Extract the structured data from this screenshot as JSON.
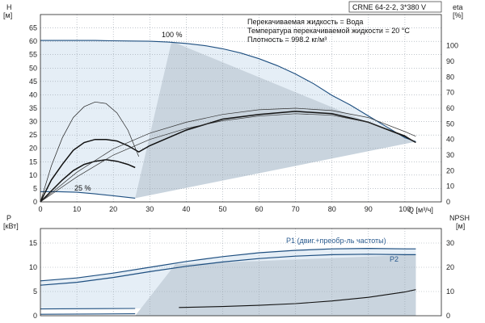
{
  "chart_data": [
    {
      "type": "line",
      "title": "CRNE 64-2-2, 3*380 V",
      "info_lines": [
        "Перекачиваемая жидкость = Вода",
        "Температура перекачиваемой жидкости = 20 °C",
        "Плотность = 998.2 кг/м³"
      ],
      "left_axis_label": "H",
      "left_axis_unit": "[м]",
      "right_axis_label": "eta",
      "right_axis_unit": "[%]",
      "x_axis_label": "Q [м³/ч]",
      "xlim": [
        0,
        110
      ],
      "ylim": [
        0,
        70
      ],
      "y2lim": [
        0,
        120
      ],
      "x_ticks": [
        0,
        10,
        20,
        30,
        40,
        50,
        60,
        70,
        80,
        90,
        100
      ],
      "y_ticks": [
        0,
        5,
        10,
        15,
        20,
        25,
        30,
        35,
        40,
        45,
        50,
        55,
        60,
        65
      ],
      "y2_ticks": [
        0,
        10,
        20,
        30,
        40,
        50,
        60,
        70,
        80,
        90,
        100
      ],
      "grid": true,
      "series": [
        {
          "name": "100 %",
          "axis": "left",
          "x": [
            0,
            5,
            10,
            15,
            20,
            25,
            30,
            35,
            40,
            45,
            50,
            55,
            60,
            65,
            70,
            75,
            80,
            85,
            90,
            95,
            100,
            103
          ],
          "y": [
            60.3,
            60.3,
            60.3,
            60.3,
            60.2,
            60.1,
            60.0,
            59.7,
            59.2,
            58.4,
            57.2,
            55.6,
            53.5,
            50.9,
            47.8,
            44.1,
            39.8,
            36.2,
            32.1,
            28.0,
            24.0,
            22.5
          ]
        },
        {
          "name": "25 %",
          "axis": "left",
          "x": [
            0,
            5,
            10,
            15,
            20,
            26
          ],
          "y": [
            3.8,
            3.8,
            3.6,
            3.0,
            2.3,
            1.4
          ]
        },
        {
          "axis": "right",
          "x": [
            0,
            3,
            6,
            9,
            12,
            15,
            18,
            21,
            24,
            27,
            30,
            40,
            50,
            60,
            70,
            80,
            90,
            100,
            103
          ],
          "y": [
            0,
            14,
            24,
            33,
            38,
            40,
            40,
            39,
            36,
            32,
            36,
            46,
            53,
            56,
            58,
            56.5,
            51,
            42,
            38
          ]
        },
        {
          "axis": "right",
          "x": [
            0,
            3,
            6,
            9,
            12,
            15,
            18,
            21,
            24,
            27
          ],
          "y": [
            0,
            23,
            41,
            54,
            61,
            64,
            63,
            57,
            46,
            29
          ]
        },
        {
          "axis": "right",
          "x": [
            0,
            3,
            6,
            9,
            12,
            15,
            18,
            21,
            24,
            26
          ],
          "y": [
            0,
            7,
            14,
            20,
            24,
            26,
            27,
            26,
            24,
            22
          ]
        },
        {
          "axis": "right",
          "x": [
            0,
            10,
            20,
            30,
            40,
            50,
            60,
            70,
            80,
            90,
            100,
            103
          ],
          "y": [
            0,
            16,
            30,
            40,
            47,
            52,
            55,
            56.5,
            55.5,
            51,
            42.5,
            38
          ]
        },
        {
          "axis": "right",
          "x": [
            0,
            10,
            20,
            30,
            40,
            50,
            60,
            70,
            80,
            90,
            100,
            103
          ],
          "y": [
            0,
            19,
            34,
            44,
            51,
            56,
            59,
            60,
            58.5,
            54,
            45,
            42
          ]
        }
      ]
    },
    {
      "type": "line",
      "left_axis_label": "P",
      "left_axis_unit": "[кВт]",
      "right_axis_label": "NPSH",
      "right_axis_unit": "[м]",
      "xlim": [
        0,
        110
      ],
      "ylim": [
        0,
        18
      ],
      "y2lim": [
        0,
        36
      ],
      "x_ticks": [
        0,
        10,
        20,
        30,
        40,
        50,
        60,
        70,
        80,
        90,
        100
      ],
      "y_ticks": [
        0,
        5,
        10,
        15
      ],
      "y2_ticks": [
        0,
        10,
        20,
        30
      ],
      "grid": true,
      "series": [
        {
          "name": "P1 (двиг.+преобр-ль частоты)",
          "axis": "left",
          "x": [
            0,
            10,
            20,
            30,
            40,
            50,
            60,
            70,
            80,
            90,
            100,
            103
          ],
          "y": [
            7.2,
            7.8,
            8.8,
            10.0,
            11.2,
            12.2,
            13.0,
            13.5,
            13.8,
            13.9,
            13.8,
            13.8
          ]
        },
        {
          "name": "P2",
          "axis": "left",
          "x": [
            0,
            10,
            20,
            30,
            40,
            50,
            60,
            70,
            80,
            90,
            100,
            103
          ],
          "y": [
            6.3,
            6.9,
            7.9,
            9.1,
            10.2,
            11.1,
            11.8,
            12.3,
            12.6,
            12.7,
            12.6,
            12.6
          ]
        },
        {
          "axis": "left",
          "x": [
            0,
            26
          ],
          "y": [
            1.4,
            1.5
          ]
        },
        {
          "axis": "left",
          "x": [
            0,
            26
          ],
          "y": [
            0.3,
            0.4
          ]
        },
        {
          "axis": "right",
          "x": [
            38,
            50,
            60,
            70,
            80,
            90,
            100,
            103
          ],
          "y": [
            3.4,
            3.8,
            4.3,
            5.0,
            6.1,
            7.6,
            9.8,
            10.8
          ]
        }
      ]
    }
  ]
}
